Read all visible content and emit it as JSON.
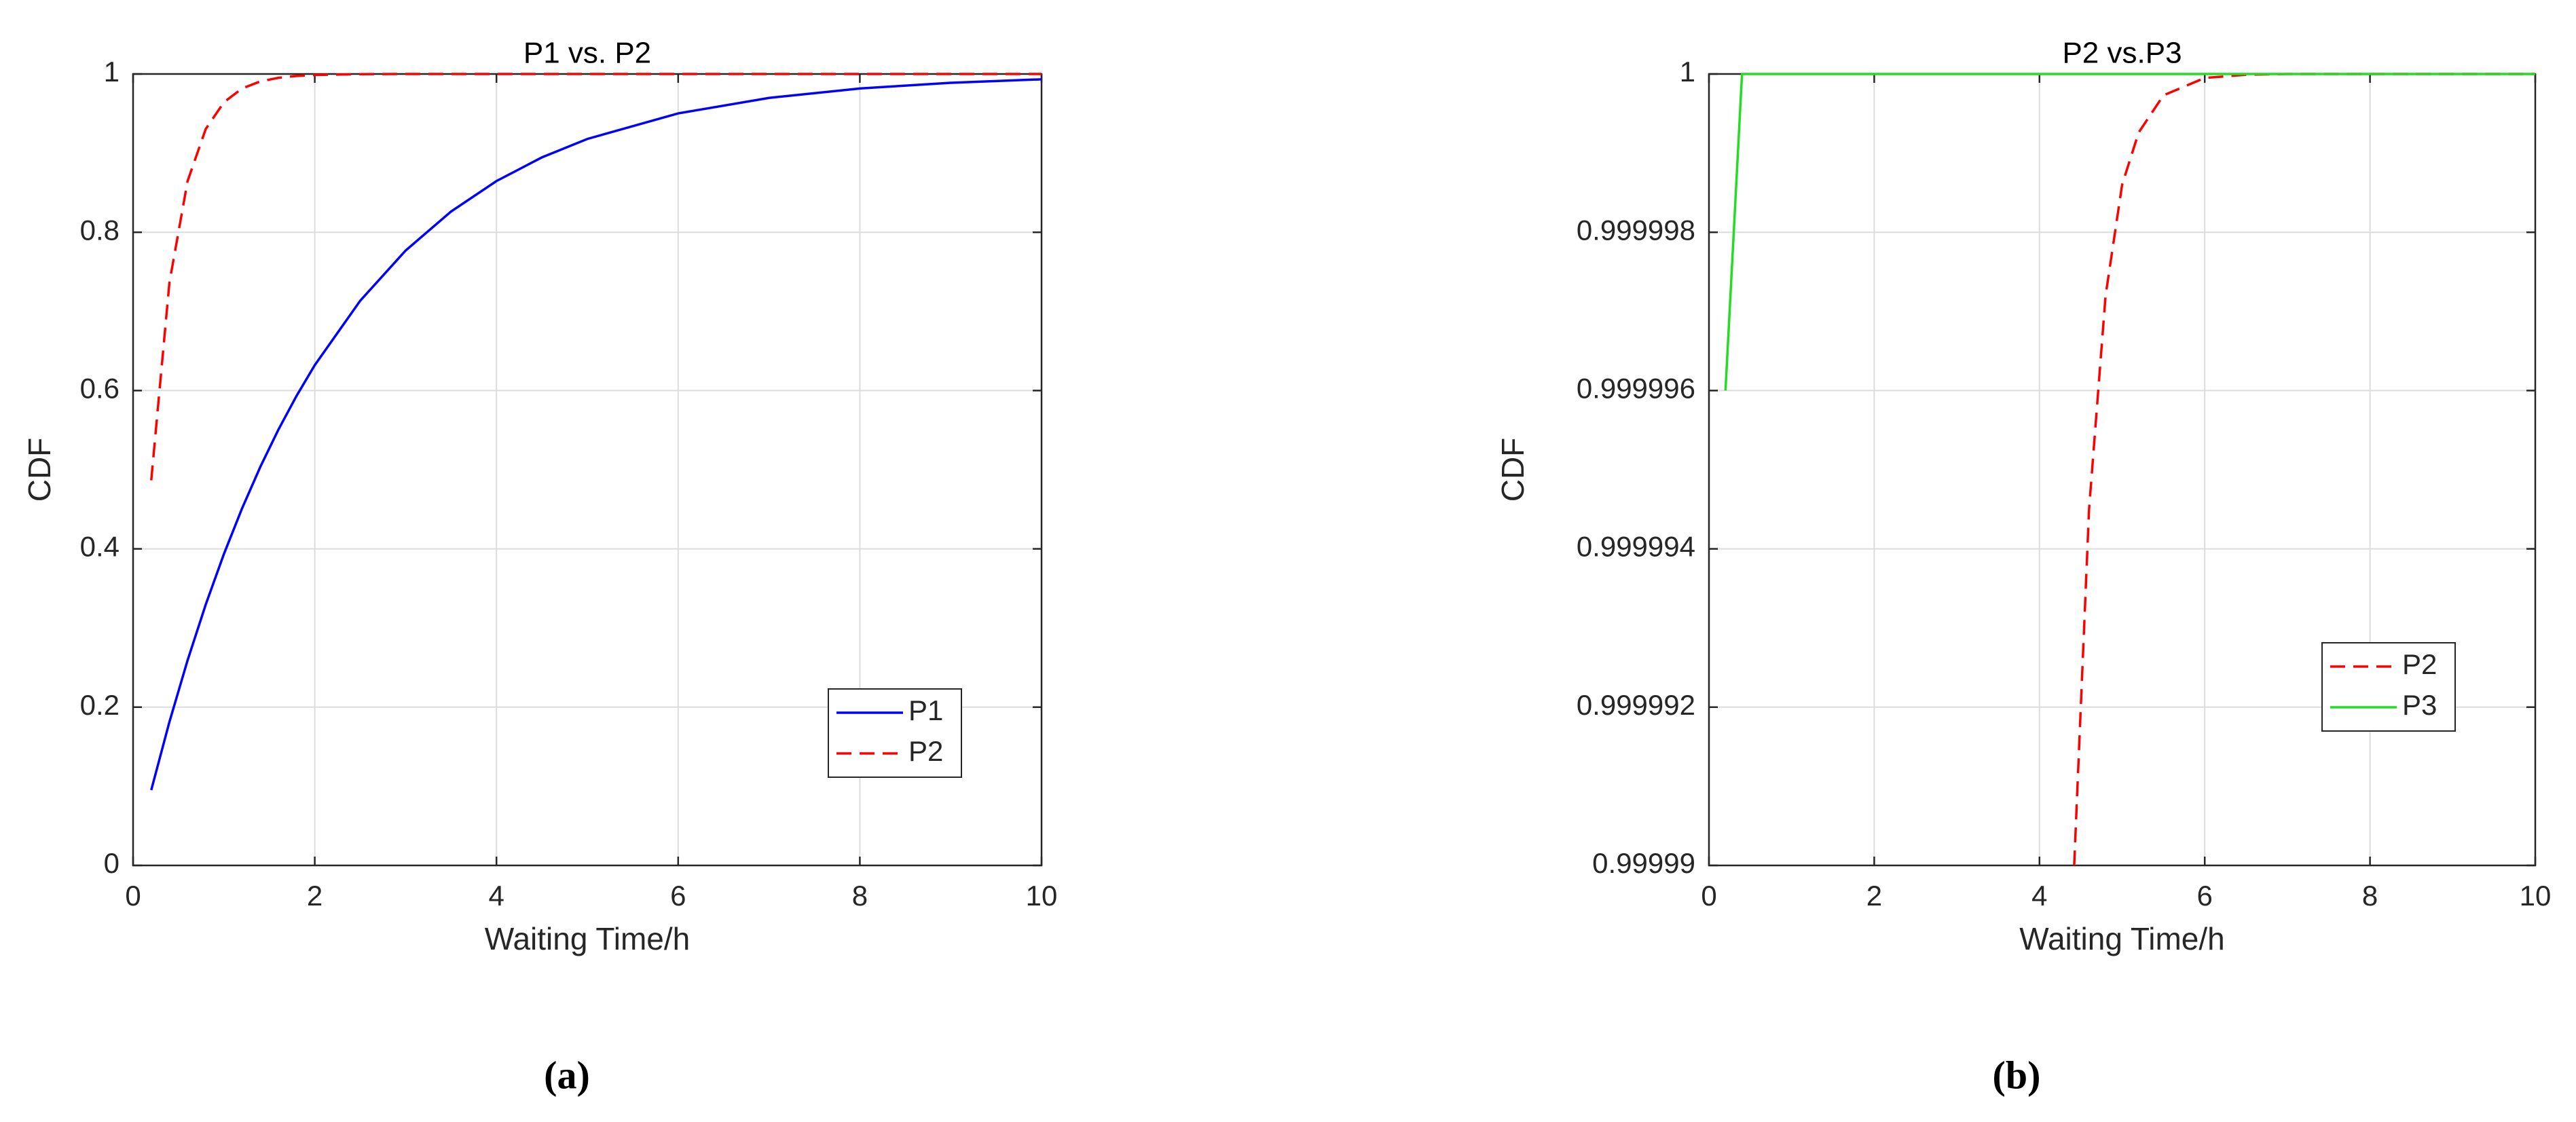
{
  "chart_data": [
    {
      "type": "line",
      "title": "P1 vs. P2",
      "xlabel": "Waiting Time/h",
      "ylabel": "CDF",
      "caption": "(a)",
      "xlim": [
        0,
        10
      ],
      "xticks": [
        0,
        2,
        4,
        6,
        8,
        10
      ],
      "ylim": [
        0,
        1
      ],
      "yticks": [
        0,
        0.2,
        0.4,
        0.6,
        0.8,
        1
      ],
      "grid": true,
      "legend": "lower right",
      "series": [
        {
          "name": "P1",
          "color": "#0000ff",
          "dashed": false,
          "x": [
            0.2,
            0.4,
            0.6,
            0.8,
            1,
            1.2,
            1.4,
            1.6,
            1.8,
            2,
            2.5,
            3,
            3.5,
            4,
            4.5,
            5,
            6,
            7,
            8,
            9,
            10
          ],
          "values": [
            0.0952,
            0.1813,
            0.2592,
            0.3297,
            0.3935,
            0.4512,
            0.5034,
            0.5507,
            0.5934,
            0.6321,
            0.7135,
            0.7769,
            0.8262,
            0.8647,
            0.8946,
            0.9179,
            0.9502,
            0.9698,
            0.9817,
            0.9889,
            0.9933
          ]
        },
        {
          "name": "P2",
          "color": "#ff0000",
          "dashed": true,
          "x": [
            0.2,
            0.4,
            0.6,
            0.8,
            1,
            1.2,
            1.4,
            1.6,
            1.8,
            2,
            2.5,
            3,
            4,
            6,
            8,
            10
          ],
          "values": [
            0.4866,
            0.7364,
            0.8647,
            0.9305,
            0.9643,
            0.9817,
            0.9906,
            0.9952,
            0.9975,
            0.9987,
            0.9998,
            1,
            1,
            1,
            1,
            1
          ]
        }
      ]
    },
    {
      "type": "line",
      "title": "P2 vs.P3",
      "xlabel": "Waiting Time/h",
      "ylabel": "CDF",
      "caption": "(b)",
      "xlim": [
        0,
        10
      ],
      "xticks": [
        0,
        2,
        4,
        6,
        8,
        10
      ],
      "ylim": [
        0.99999,
        1
      ],
      "yticks": [
        0.99999,
        0.999992,
        0.999994,
        0.999996,
        0.999998,
        1
      ],
      "grid": true,
      "legend": "right",
      "series": [
        {
          "name": "P2",
          "color": "#ff0000",
          "dashed": true,
          "x": [
            4.42,
            4.6,
            4.8,
            5,
            5.2,
            5.5,
            6,
            6.5,
            7,
            8,
            9,
            10
          ],
          "values": [
            0.99999,
            0.9999945,
            0.9999972,
            0.9999986,
            0.99999926,
            0.99999973,
            0.99999995,
            0.99999999,
            1,
            1,
            1,
            1
          ]
        },
        {
          "name": "P3",
          "color": "#22dd22",
          "dashed": false,
          "x": [
            0.2,
            0.4,
            1,
            2,
            4,
            6,
            8,
            10
          ],
          "values": [
            0.999996,
            1,
            1,
            1,
            1,
            1,
            1,
            1
          ]
        }
      ]
    }
  ]
}
